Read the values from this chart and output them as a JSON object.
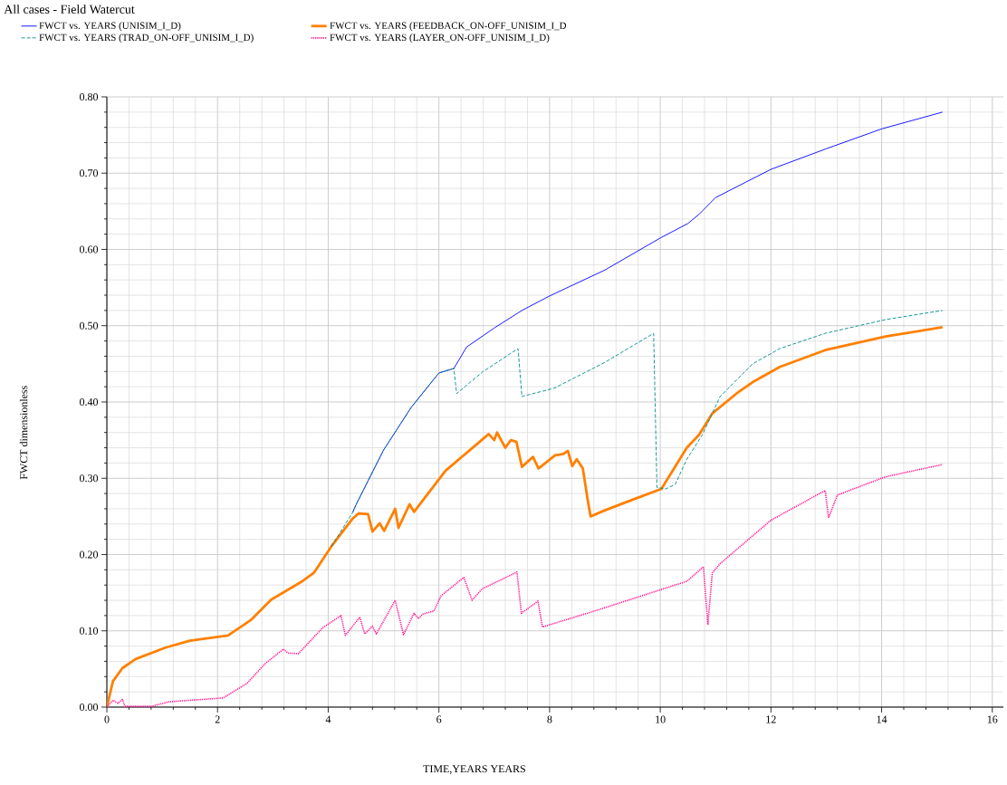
{
  "chart_data": {
    "type": "line",
    "title": "All cases -  Field Watercut",
    "xlabel": "TIME,YEARS  YEARS",
    "ylabel": "FWCT dimensionless",
    "xlim": [
      0,
      16.2
    ],
    "ylim": [
      0,
      0.8
    ],
    "xticks": [
      0,
      2,
      4,
      6,
      8,
      10,
      12,
      14,
      16
    ],
    "yticks": [
      {
        "value": 0,
        "label": "0.00"
      },
      {
        "value": 0.1,
        "label": "0.10"
      },
      {
        "value": 0.2,
        "label": "0.20"
      },
      {
        "value": 0.3,
        "label": "0.30"
      },
      {
        "value": 0.4,
        "label": "0.40"
      },
      {
        "value": 0.5,
        "label": "0.50"
      },
      {
        "value": 0.6,
        "label": "0.60"
      },
      {
        "value": 0.7,
        "label": "0.70"
      },
      {
        "value": 0.8,
        "label": "0.80"
      }
    ],
    "grid": true,
    "legend": "top left",
    "series": [
      {
        "name": "FWCT vs. YEARS (UNISIM_I_D)",
        "color": "#0000ff",
        "line_style": "solid",
        "x": [
          4.44,
          4.5,
          5.0,
          5.5,
          6.0,
          6.27,
          6.5,
          7.0,
          7.5,
          8.0,
          9.0,
          10.0,
          10.5,
          10.7,
          11.0,
          12.0,
          13.0,
          14.0,
          15.1
        ],
        "values": [
          0.255,
          0.265,
          0.337,
          0.393,
          0.438,
          0.444,
          0.472,
          0.497,
          0.52,
          0.539,
          0.573,
          0.615,
          0.634,
          0.646,
          0.668,
          0.705,
          0.732,
          0.758,
          0.78
        ]
      },
      {
        "name": "FWCT vs. YEARS (FEEDBACK_ON-OFF_UNISIM_I_D",
        "color": "#ff8000",
        "line_style": "solid",
        "x": [
          0,
          0.11,
          0.28,
          0.52,
          1.06,
          1.5,
          2.19,
          2.6,
          2.97,
          3.51,
          3.74,
          4.06,
          4.44,
          4.55,
          4.72,
          4.8,
          4.93,
          5.01,
          5.21,
          5.27,
          5.47,
          5.55,
          6.12,
          6.56,
          6.9,
          7.0,
          7.05,
          7.2,
          7.3,
          7.4,
          7.5,
          7.7,
          7.8,
          8.1,
          8.25,
          8.33,
          8.41,
          8.49,
          8.6,
          8.69,
          8.74,
          9.0,
          9.5,
          10.02,
          10.48,
          10.7,
          10.94,
          11.41,
          11.67,
          12.16,
          12.98,
          14.07,
          15.1
        ],
        "values": [
          0,
          0.034,
          0.051,
          0.063,
          0.078,
          0.087,
          0.094,
          0.114,
          0.141,
          0.164,
          0.176,
          0.211,
          0.247,
          0.254,
          0.253,
          0.23,
          0.241,
          0.231,
          0.26,
          0.235,
          0.266,
          0.256,
          0.31,
          0.337,
          0.358,
          0.35,
          0.36,
          0.34,
          0.35,
          0.348,
          0.315,
          0.328,
          0.313,
          0.33,
          0.332,
          0.336,
          0.316,
          0.325,
          0.313,
          0.271,
          0.25,
          0.258,
          0.272,
          0.286,
          0.34,
          0.357,
          0.385,
          0.413,
          0.426,
          0.446,
          0.468,
          0.486,
          0.498
        ]
      },
      {
        "name": "FWCT vs. YEARS (TRAD_ON-OFF_UNISIM_I_D)",
        "color": "#008b8b",
        "line_style": "dashed",
        "x": [
          4.06,
          4.44,
          4.5,
          5.0,
          5.5,
          6.0,
          6.27,
          6.32,
          6.8,
          7.43,
          7.5,
          7.54,
          8.08,
          9.0,
          9.88,
          9.94,
          10.1,
          10.27,
          10.48,
          10.76,
          11.08,
          11.67,
          12.16,
          12.98,
          14.07,
          15.1
        ],
        "values": [
          0.211,
          0.255,
          0.265,
          0.337,
          0.393,
          0.438,
          0.444,
          0.411,
          0.44,
          0.47,
          0.407,
          0.408,
          0.418,
          0.452,
          0.49,
          0.288,
          0.286,
          0.292,
          0.325,
          0.357,
          0.407,
          0.45,
          0.47,
          0.49,
          0.508,
          0.52
        ]
      },
      {
        "name": "FWCT vs. YEARS (LAYER_ON-OFF_UNISIM_I_D)",
        "color": "#ff1493",
        "line_style": "dotted",
        "x": [
          0,
          0.11,
          0.2,
          0.28,
          0.33,
          0.8,
          1.12,
          2.1,
          2.53,
          2.86,
          3.19,
          3.27,
          3.46,
          3.9,
          4.23,
          4.31,
          4.57,
          4.66,
          4.8,
          4.87,
          5.21,
          5.36,
          5.55,
          5.63,
          5.71,
          5.91,
          6.04,
          6.45,
          6.6,
          6.78,
          7.41,
          7.49,
          7.79,
          7.87,
          8.9,
          10.48,
          10.78,
          10.86,
          10.94,
          11.08,
          12.0,
          12.98,
          13.04,
          13.2,
          14.07,
          15.1
        ],
        "values": [
          0,
          0.009,
          0.005,
          0.01,
          0.001,
          0.001,
          0.007,
          0.012,
          0.031,
          0.057,
          0.076,
          0.071,
          0.07,
          0.104,
          0.12,
          0.094,
          0.118,
          0.096,
          0.106,
          0.096,
          0.14,
          0.095,
          0.123,
          0.116,
          0.122,
          0.126,
          0.146,
          0.17,
          0.14,
          0.155,
          0.177,
          0.123,
          0.139,
          0.105,
          0.128,
          0.165,
          0.184,
          0.108,
          0.176,
          0.188,
          0.245,
          0.284,
          0.248,
          0.278,
          0.302,
          0.318
        ]
      }
    ]
  }
}
